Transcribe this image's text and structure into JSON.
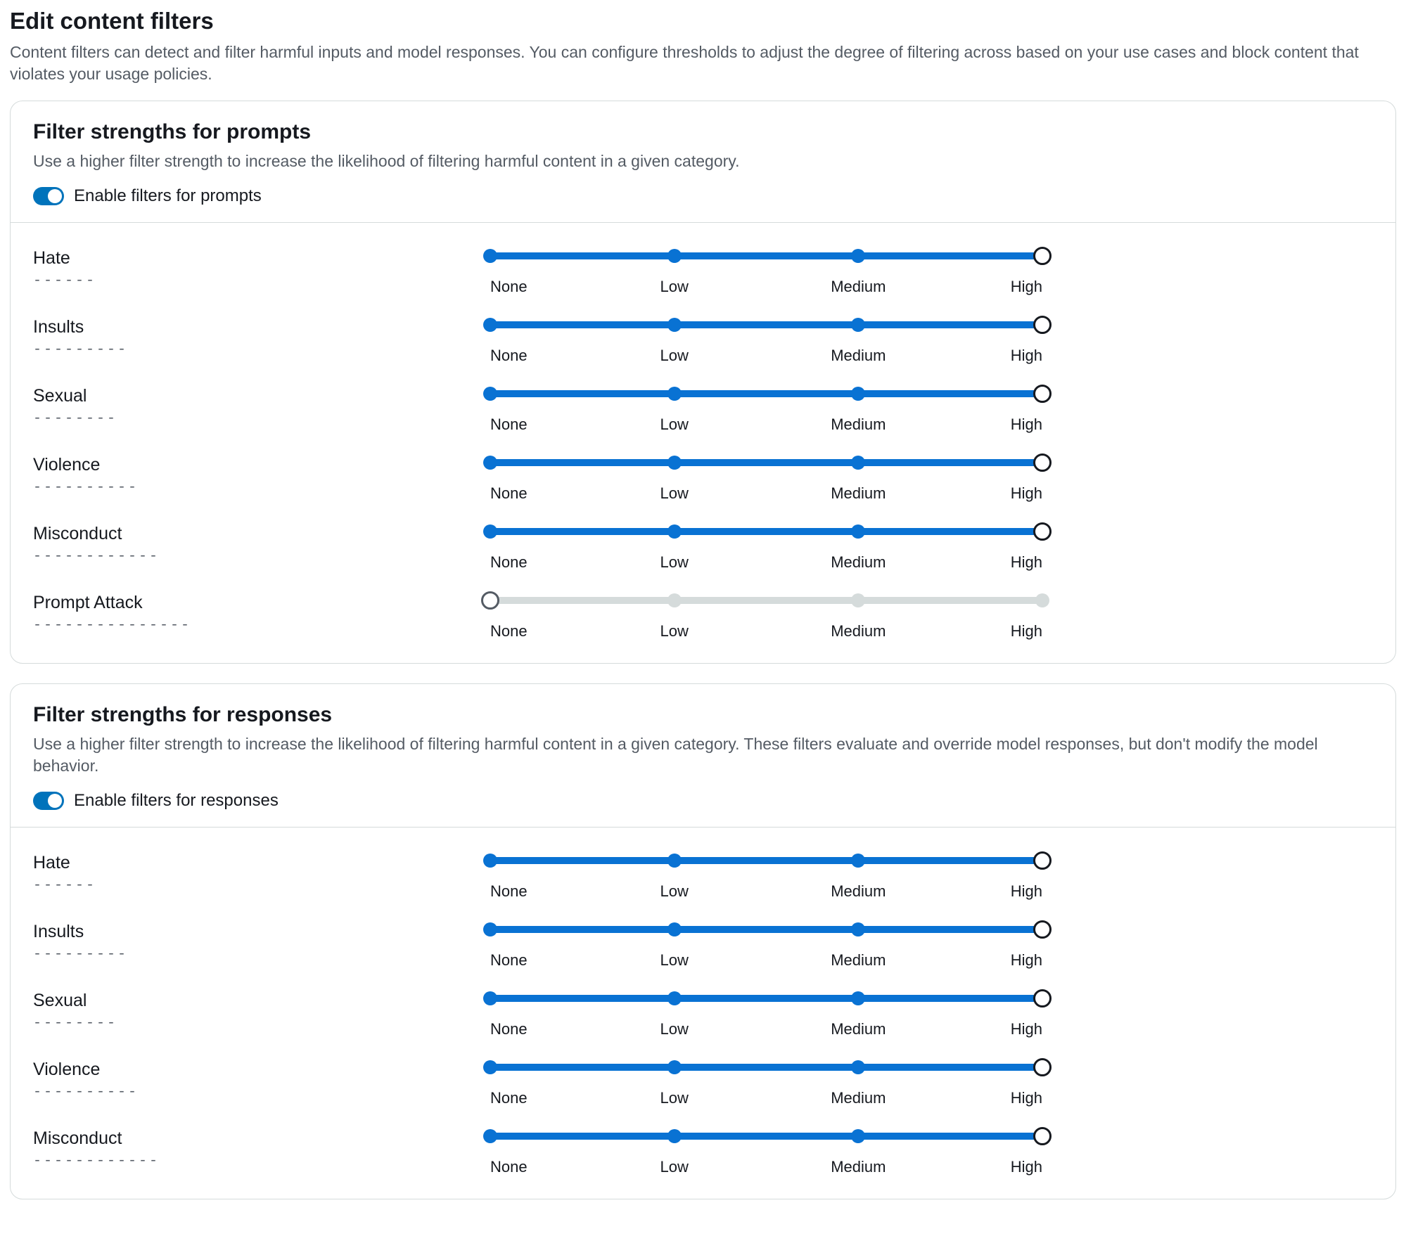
{
  "colors": {
    "track_active": "#0972d3",
    "track_inactive": "#d5dbdb",
    "tick_active": "#0972d3",
    "tick_inactive": "#d5dbdb",
    "thumb_border_active": "#16191f",
    "thumb_border_inactive": "#545b64"
  },
  "page": {
    "title": "Edit content filters",
    "description": "Content filters can detect and filter harmful inputs and model responses. You can configure thresholds to adjust the degree of filtering across based on your use cases and block content that violates your usage policies."
  },
  "scale_labels": [
    "None",
    "Low",
    "Medium",
    "High"
  ],
  "underline_char": "-",
  "sections": [
    {
      "id": "prompts",
      "title": "Filter strengths for prompts",
      "description": "Use a higher filter strength to increase the likelihood of filtering harmful content in a given category.",
      "toggle_label": "Enable filters for prompts",
      "toggle_on": true,
      "filters": [
        {
          "name": "Hate",
          "value": 3,
          "enabled": true
        },
        {
          "name": "Insults",
          "value": 3,
          "enabled": true
        },
        {
          "name": "Sexual",
          "value": 3,
          "enabled": true
        },
        {
          "name": "Violence",
          "value": 3,
          "enabled": true
        },
        {
          "name": "Misconduct",
          "value": 3,
          "enabled": true
        },
        {
          "name": "Prompt Attack",
          "value": 0,
          "enabled": false
        }
      ]
    },
    {
      "id": "responses",
      "title": "Filter strengths for responses",
      "description": "Use a higher filter strength to increase the likelihood of filtering harmful content in a given category. These filters evaluate and override model responses, but don't modify the model behavior.",
      "toggle_label": "Enable filters for responses",
      "toggle_on": true,
      "filters": [
        {
          "name": "Hate",
          "value": 3,
          "enabled": true
        },
        {
          "name": "Insults",
          "value": 3,
          "enabled": true
        },
        {
          "name": "Sexual",
          "value": 3,
          "enabled": true
        },
        {
          "name": "Violence",
          "value": 3,
          "enabled": true
        },
        {
          "name": "Misconduct",
          "value": 3,
          "enabled": true
        }
      ]
    }
  ]
}
